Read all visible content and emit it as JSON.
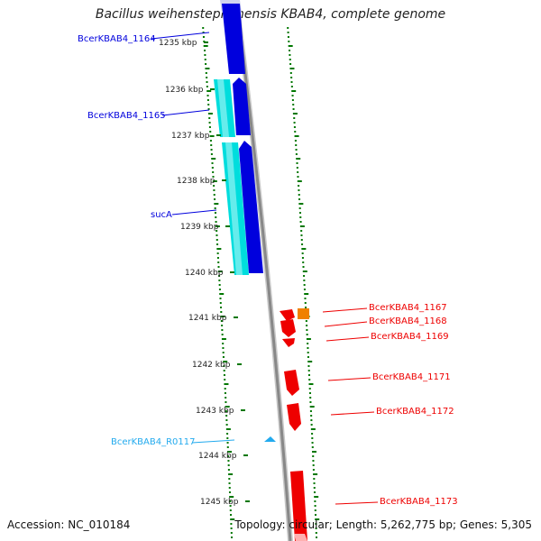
{
  "title": "Bacillus weihenstephanensis KBAB4, complete genome",
  "accession": "Accession: NC_010184",
  "topology": "Topology: circular; Length: 5,262,775 bp; Genes: 5,305",
  "colors": {
    "forward_cds": "#0000dd",
    "forward_rna": "#00dddd",
    "reverse_cds": "#ee0000",
    "reverse_other": "#f08000",
    "ticks": "#007700",
    "backbone": "#888888",
    "label_rna": "#22aaee"
  },
  "ruler": [
    {
      "label": "1235 kbp",
      "kbp": 1235
    },
    {
      "label": "1236 kbp",
      "kbp": 1236
    },
    {
      "label": "1237 kbp",
      "kbp": 1237
    },
    {
      "label": "1238 kbp",
      "kbp": 1238
    },
    {
      "label": "1239 kbp",
      "kbp": 1239
    },
    {
      "label": "1240 kbp",
      "kbp": 1240
    },
    {
      "label": "1241 kbp",
      "kbp": 1241
    },
    {
      "label": "1242 kbp",
      "kbp": 1242
    },
    {
      "label": "1243 kbp",
      "kbp": 1243
    },
    {
      "label": "1244 kbp",
      "kbp": 1244
    },
    {
      "label": "1245 kbp",
      "kbp": 1245
    }
  ],
  "gene_labels": [
    {
      "name": "BcerKBAB4_1164",
      "strand": "forward",
      "kind": "cds"
    },
    {
      "name": "BcerKBAB4_1165",
      "strand": "forward",
      "kind": "cds"
    },
    {
      "name": "sucA",
      "strand": "forward",
      "kind": "cds"
    },
    {
      "name": "BcerKBAB4_R0117",
      "strand": "reverse",
      "kind": "rna"
    },
    {
      "name": "BcerKBAB4_1167",
      "strand": "reverse",
      "kind": "cds"
    },
    {
      "name": "BcerKBAB4_1168",
      "strand": "reverse",
      "kind": "cds"
    },
    {
      "name": "BcerKBAB4_1169",
      "strand": "reverse",
      "kind": "cds"
    },
    {
      "name": "BcerKBAB4_1171",
      "strand": "reverse",
      "kind": "cds"
    },
    {
      "name": "BcerKBAB4_1172",
      "strand": "reverse",
      "kind": "cds"
    },
    {
      "name": "BcerKBAB4_1173",
      "strand": "reverse",
      "kind": "cds"
    }
  ]
}
